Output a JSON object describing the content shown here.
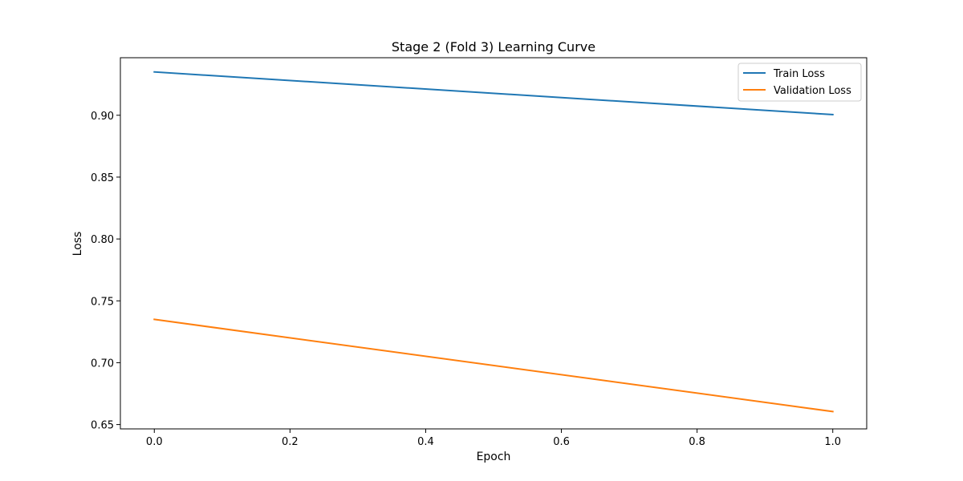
{
  "chart_data": {
    "type": "line",
    "title": "Stage 2 (Fold 3) Learning Curve",
    "xlabel": "Epoch",
    "ylabel": "Loss",
    "xlim": [
      -0.05,
      1.05
    ],
    "ylim": [
      0.6465,
      0.9465
    ],
    "x_ticks": [
      0.0,
      0.2,
      0.4,
      0.6,
      0.8,
      1.0
    ],
    "x_tick_labels": [
      "0.0",
      "0.2",
      "0.4",
      "0.6",
      "0.8",
      "1.0"
    ],
    "y_ticks": [
      0.65,
      0.7,
      0.75,
      0.8,
      0.85,
      0.9
    ],
    "y_tick_labels": [
      "0.65",
      "0.70",
      "0.75",
      "0.80",
      "0.85",
      "0.90"
    ],
    "grid": false,
    "legend_position": "upper-right",
    "x": [
      0,
      1
    ],
    "series": [
      {
        "name": "Train Loss",
        "values": [
          0.935,
          0.9005
        ],
        "color": "#1f77b4"
      },
      {
        "name": "Validation Loss",
        "values": [
          0.735,
          0.6605
        ],
        "color": "#ff7f0e"
      }
    ]
  }
}
